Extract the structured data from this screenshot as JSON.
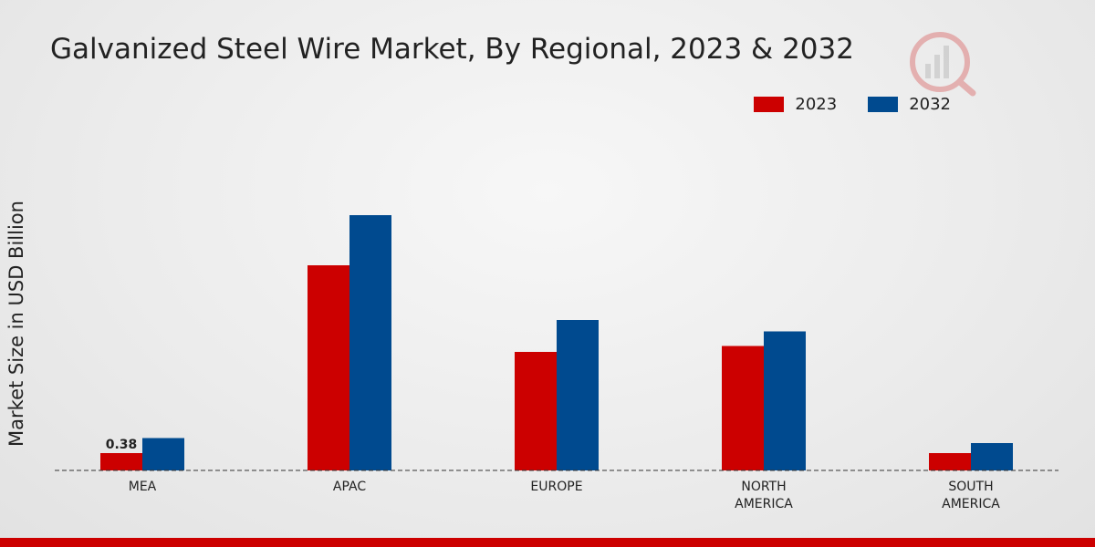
{
  "chart_data": {
    "type": "bar",
    "title": "Galvanized Steel Wire Market, By Regional, 2023 & 2032",
    "xlabel": "",
    "ylabel": "Market Size in USD Billion",
    "categories": [
      "MEA",
      "APAC",
      "EUROPE",
      "NORTH AMERICA",
      "SOUTH AMERICA"
    ],
    "category_lines": [
      [
        "MEA"
      ],
      [
        "APAC"
      ],
      [
        "EUROPE"
      ],
      [
        "NORTH",
        "AMERICA"
      ],
      [
        "SOUTH",
        "AMERICA"
      ]
    ],
    "series": [
      {
        "name": "2023",
        "color": "#cc0000",
        "values": [
          0.38,
          4.5,
          2.6,
          2.73,
          0.38
        ]
      },
      {
        "name": "2032",
        "color": "#004a8f",
        "values": [
          0.71,
          5.6,
          3.3,
          3.05,
          0.6
        ]
      }
    ],
    "ylim": [
      0,
      7
    ],
    "data_labels": [
      {
        "series": 0,
        "index": 0,
        "text": "0.38"
      }
    ],
    "legend_position": "top-right",
    "grid": false
  },
  "legend": {
    "items": [
      {
        "label": "2023",
        "color": "#cc0000"
      },
      {
        "label": "2032",
        "color": "#004a8f"
      }
    ]
  }
}
